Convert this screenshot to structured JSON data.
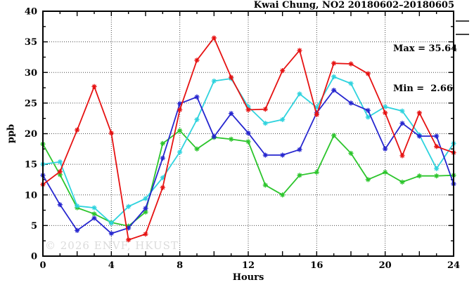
{
  "title": "Kwai Chung, NO2 20180602–20180605",
  "legend": {
    "max_label": "Max = 35.64",
    "min_label": "Min =  2.66"
  },
  "watermark": "© 2026 ENVF, HKUST",
  "chart_data": {
    "type": "line",
    "title": "Kwai Chung, NO2 20180602–20180605",
    "xlabel": "Hours",
    "ylabel": "ppb",
    "xlim": [
      0,
      24
    ],
    "ylim": [
      0,
      40
    ],
    "x_major_ticks": [
      0,
      4,
      8,
      12,
      16,
      20,
      24
    ],
    "x_minor_step": 1,
    "x_mid_step": 2,
    "y_major_ticks": [
      0,
      5,
      10,
      15,
      20,
      25,
      30,
      35,
      40
    ],
    "y_minor_step": 2.5,
    "grid": true,
    "grid_x_lines": [
      4,
      8,
      12,
      16,
      20
    ],
    "grid_y_lines": [
      5,
      10,
      15,
      20,
      25,
      30,
      35
    ],
    "legend_position": "top-right",
    "annotations": {
      "max": 35.64,
      "min": 2.66
    },
    "x": [
      0,
      1,
      2,
      3,
      4,
      5,
      6,
      7,
      8,
      9,
      10,
      11,
      12,
      13,
      14,
      15,
      16,
      17,
      18,
      19,
      20,
      21,
      22,
      23,
      24
    ],
    "series": [
      {
        "name": "series-green",
        "color": "#2cc52c",
        "values": [
          18.3,
          13.3,
          7.9,
          6.9,
          5.5,
          4.9,
          7.2,
          18.4,
          20.5,
          17.5,
          19.4,
          19.1,
          18.7,
          11.6,
          10.0,
          13.2,
          13.7,
          19.7,
          16.8,
          12.5,
          13.7,
          12.1,
          13.1,
          13.1,
          13.2
        ]
      },
      {
        "name": "series-cyan",
        "color": "#2fd3de",
        "values": [
          15.0,
          15.4,
          8.2,
          7.9,
          5.4,
          8.1,
          9.4,
          12.8,
          17.0,
          22.3,
          28.6,
          29.0,
          24.4,
          21.7,
          22.3,
          26.5,
          24.3,
          29.3,
          28.2,
          22.7,
          24.4,
          23.7,
          19.8,
          14.3,
          18.4
        ]
      },
      {
        "name": "series-blue",
        "color": "#2626cf",
        "values": [
          13.2,
          8.4,
          4.2,
          6.2,
          3.7,
          4.6,
          7.8,
          16.0,
          24.9,
          26.0,
          19.5,
          23.3,
          20.1,
          16.5,
          16.5,
          17.4,
          23.4,
          27.1,
          25.0,
          23.8,
          17.5,
          21.7,
          19.6,
          19.6,
          11.8
        ]
      },
      {
        "name": "series-red",
        "color": "#e61212",
        "values": [
          11.7,
          13.8,
          20.6,
          27.7,
          20.1,
          2.66,
          3.6,
          11.2,
          23.9,
          32.0,
          35.64,
          29.2,
          23.9,
          24.0,
          30.3,
          33.6,
          23.1,
          31.5,
          31.4,
          29.8,
          23.4,
          16.4,
          23.4,
          17.9,
          16.9
        ]
      }
    ]
  }
}
